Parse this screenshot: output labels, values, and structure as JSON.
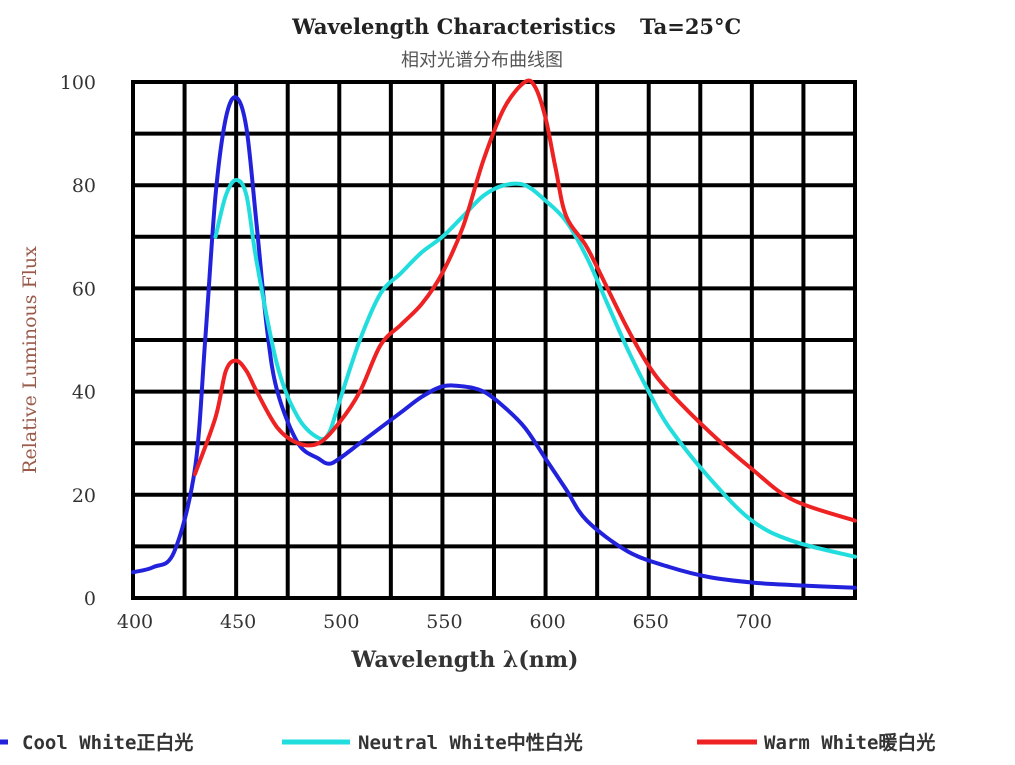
{
  "chart_data": {
    "type": "line",
    "title": "Wavelength Characteristics",
    "title_condition": "Ta=25°C",
    "subtitle": "相对光谱分布曲线图",
    "xlabel": "Wavelength λ(nm)",
    "ylabel": "Relative Luminous Flux",
    "xlim": [
      400,
      750
    ],
    "ylim": [
      0,
      100
    ],
    "x_ticks": [
      "400",
      "450",
      "500",
      "550",
      "600",
      "650",
      "700"
    ],
    "y_ticks": [
      "0",
      "20",
      "40",
      "60",
      "80",
      "100"
    ],
    "grid": true,
    "legend_position": "bottom",
    "series": [
      {
        "name": "Cool White正白光",
        "color": "#2222dd",
        "x": [
          400,
          410,
          420,
          430,
          435,
          440,
          445,
          450,
          455,
          460,
          465,
          470,
          480,
          490,
          495,
          500,
          510,
          520,
          530,
          540,
          550,
          560,
          570,
          580,
          590,
          600,
          610,
          620,
          640,
          660,
          680,
          700,
          720,
          750
        ],
        "y": [
          5,
          6,
          9,
          25,
          50,
          78,
          93,
          97,
          91,
          72,
          52,
          40,
          30,
          27,
          26,
          27,
          30,
          33,
          36,
          39,
          41,
          41,
          40,
          37,
          33,
          27,
          21,
          15,
          9,
          6,
          4,
          3,
          2.5,
          2
        ]
      },
      {
        "name": "Neutral White中性白光",
        "color": "#22dddd",
        "x": [
          440,
          445,
          450,
          455,
          460,
          470,
          480,
          490,
          495,
          500,
          510,
          520,
          530,
          540,
          550,
          560,
          570,
          580,
          590,
          600,
          610,
          620,
          630,
          640,
          650,
          660,
          680,
          700,
          720,
          750
        ],
        "y": [
          70,
          78,
          81,
          78,
          65,
          45,
          35,
          31,
          32,
          38,
          50,
          59,
          63,
          67,
          70,
          74,
          78,
          80,
          80,
          77,
          73,
          66,
          57,
          48,
          40,
          33,
          23,
          15,
          11,
          8
        ]
      },
      {
        "name": "Warm White暖白光",
        "color": "#ee2222",
        "x": [
          430,
          440,
          445,
          450,
          455,
          460,
          470,
          480,
          490,
          500,
          510,
          520,
          530,
          540,
          550,
          560,
          570,
          580,
          590,
          595,
          600,
          605,
          610,
          620,
          630,
          640,
          650,
          660,
          680,
          700,
          720,
          750
        ],
        "y": [
          24,
          35,
          44,
          46,
          44,
          40,
          33,
          30,
          30,
          34,
          40,
          49,
          53,
          57,
          63,
          72,
          85,
          95,
          100,
          99,
          93,
          83,
          74,
          68,
          60,
          52,
          45,
          40,
          32,
          25,
          19,
          15
        ]
      }
    ]
  }
}
